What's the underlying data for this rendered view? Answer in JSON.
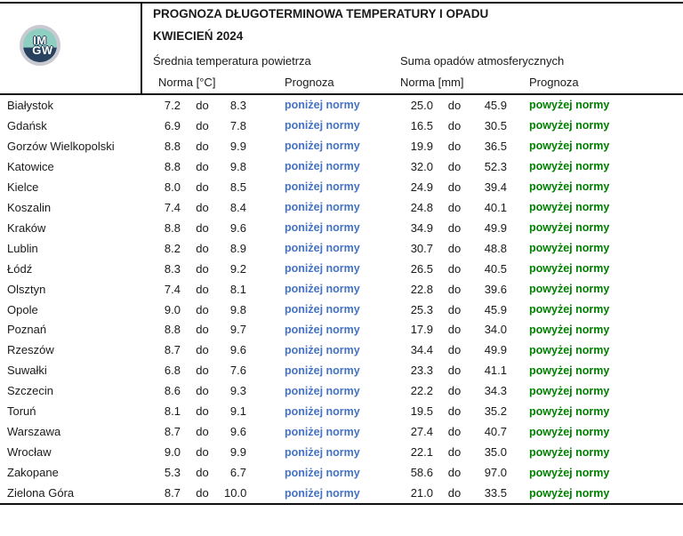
{
  "header": {
    "title": "PROGNOZA DŁUGOTERMINOWA TEMPERATURY I OPADU",
    "subtitle": "KWIECIEŃ 2024",
    "temp_section": "Średnia temperatura powietrza",
    "precip_section": "Suma opadów atmosferycznych",
    "temp_norm_label": "Norma [°C]",
    "temp_forecast_label": "Prognoza",
    "precip_norm_label": "Norma [mm]",
    "precip_forecast_label": "Prognoza",
    "logo": {
      "line1": "IM",
      "line2": "GW"
    }
  },
  "labels": {
    "separator": "do"
  },
  "colors": {
    "temp_forecast_color": "#4472c4",
    "precip_forecast_color": "#008000",
    "logo_teal": "#8ecfc1",
    "logo_navy": "#27415e"
  },
  "rows": [
    {
      "city": "Białystok",
      "t_low": "7.2",
      "t_high": "8.3",
      "t_forecast": "poniżej normy",
      "p_low": "25.0",
      "p_high": "45.9",
      "p_forecast": "powyżej normy"
    },
    {
      "city": "Gdańsk",
      "t_low": "6.9",
      "t_high": "7.8",
      "t_forecast": "poniżej normy",
      "p_low": "16.5",
      "p_high": "30.5",
      "p_forecast": "powyżej normy"
    },
    {
      "city": "Gorzów Wielkopolski",
      "t_low": "8.8",
      "t_high": "9.9",
      "t_forecast": "poniżej normy",
      "p_low": "19.9",
      "p_high": "36.5",
      "p_forecast": "powyżej normy"
    },
    {
      "city": "Katowice",
      "t_low": "8.8",
      "t_high": "9.8",
      "t_forecast": "poniżej normy",
      "p_low": "32.0",
      "p_high": "52.3",
      "p_forecast": "powyżej normy"
    },
    {
      "city": "Kielce",
      "t_low": "8.0",
      "t_high": "8.5",
      "t_forecast": "poniżej normy",
      "p_low": "24.9",
      "p_high": "39.4",
      "p_forecast": "powyżej normy"
    },
    {
      "city": "Koszalin",
      "t_low": "7.4",
      "t_high": "8.4",
      "t_forecast": "poniżej normy",
      "p_low": "24.8",
      "p_high": "40.1",
      "p_forecast": "powyżej normy"
    },
    {
      "city": "Kraków",
      "t_low": "8.8",
      "t_high": "9.6",
      "t_forecast": "poniżej normy",
      "p_low": "34.9",
      "p_high": "49.9",
      "p_forecast": "powyżej normy"
    },
    {
      "city": "Lublin",
      "t_low": "8.2",
      "t_high": "8.9",
      "t_forecast": "poniżej normy",
      "p_low": "30.7",
      "p_high": "48.8",
      "p_forecast": "powyżej normy"
    },
    {
      "city": "Łódź",
      "t_low": "8.3",
      "t_high": "9.2",
      "t_forecast": "poniżej normy",
      "p_low": "26.5",
      "p_high": "40.5",
      "p_forecast": "powyżej normy"
    },
    {
      "city": "Olsztyn",
      "t_low": "7.4",
      "t_high": "8.1",
      "t_forecast": "poniżej normy",
      "p_low": "22.8",
      "p_high": "39.6",
      "p_forecast": "powyżej normy"
    },
    {
      "city": "Opole",
      "t_low": "9.0",
      "t_high": "9.8",
      "t_forecast": "poniżej normy",
      "p_low": "25.3",
      "p_high": "45.9",
      "p_forecast": "powyżej normy"
    },
    {
      "city": "Poznań",
      "t_low": "8.8",
      "t_high": "9.7",
      "t_forecast": "poniżej normy",
      "p_low": "17.9",
      "p_high": "34.0",
      "p_forecast": "powyżej normy"
    },
    {
      "city": "Rzeszów",
      "t_low": "8.7",
      "t_high": "9.6",
      "t_forecast": "poniżej normy",
      "p_low": "34.4",
      "p_high": "49.9",
      "p_forecast": "powyżej normy"
    },
    {
      "city": "Suwałki",
      "t_low": "6.8",
      "t_high": "7.6",
      "t_forecast": "poniżej normy",
      "p_low": "23.3",
      "p_high": "41.1",
      "p_forecast": "powyżej normy"
    },
    {
      "city": "Szczecin",
      "t_low": "8.6",
      "t_high": "9.3",
      "t_forecast": "poniżej normy",
      "p_low": "22.2",
      "p_high": "34.3",
      "p_forecast": "powyżej normy"
    },
    {
      "city": "Toruń",
      "t_low": "8.1",
      "t_high": "9.1",
      "t_forecast": "poniżej normy",
      "p_low": "19.5",
      "p_high": "35.2",
      "p_forecast": "powyżej normy"
    },
    {
      "city": "Warszawa",
      "t_low": "8.7",
      "t_high": "9.6",
      "t_forecast": "poniżej normy",
      "p_low": "27.4",
      "p_high": "40.7",
      "p_forecast": "powyżej normy"
    },
    {
      "city": "Wrocław",
      "t_low": "9.0",
      "t_high": "9.9",
      "t_forecast": "poniżej normy",
      "p_low": "22.1",
      "p_high": "35.0",
      "p_forecast": "powyżej normy"
    },
    {
      "city": "Zakopane",
      "t_low": "5.3",
      "t_high": "6.7",
      "t_forecast": "poniżej normy",
      "p_low": "58.6",
      "p_high": "97.0",
      "p_forecast": "powyżej normy"
    },
    {
      "city": "Zielona Góra",
      "t_low": "8.7",
      "t_high": "10.0",
      "t_forecast": "poniżej normy",
      "p_low": "21.0",
      "p_high": "33.5",
      "p_forecast": "powyżej normy"
    }
  ]
}
